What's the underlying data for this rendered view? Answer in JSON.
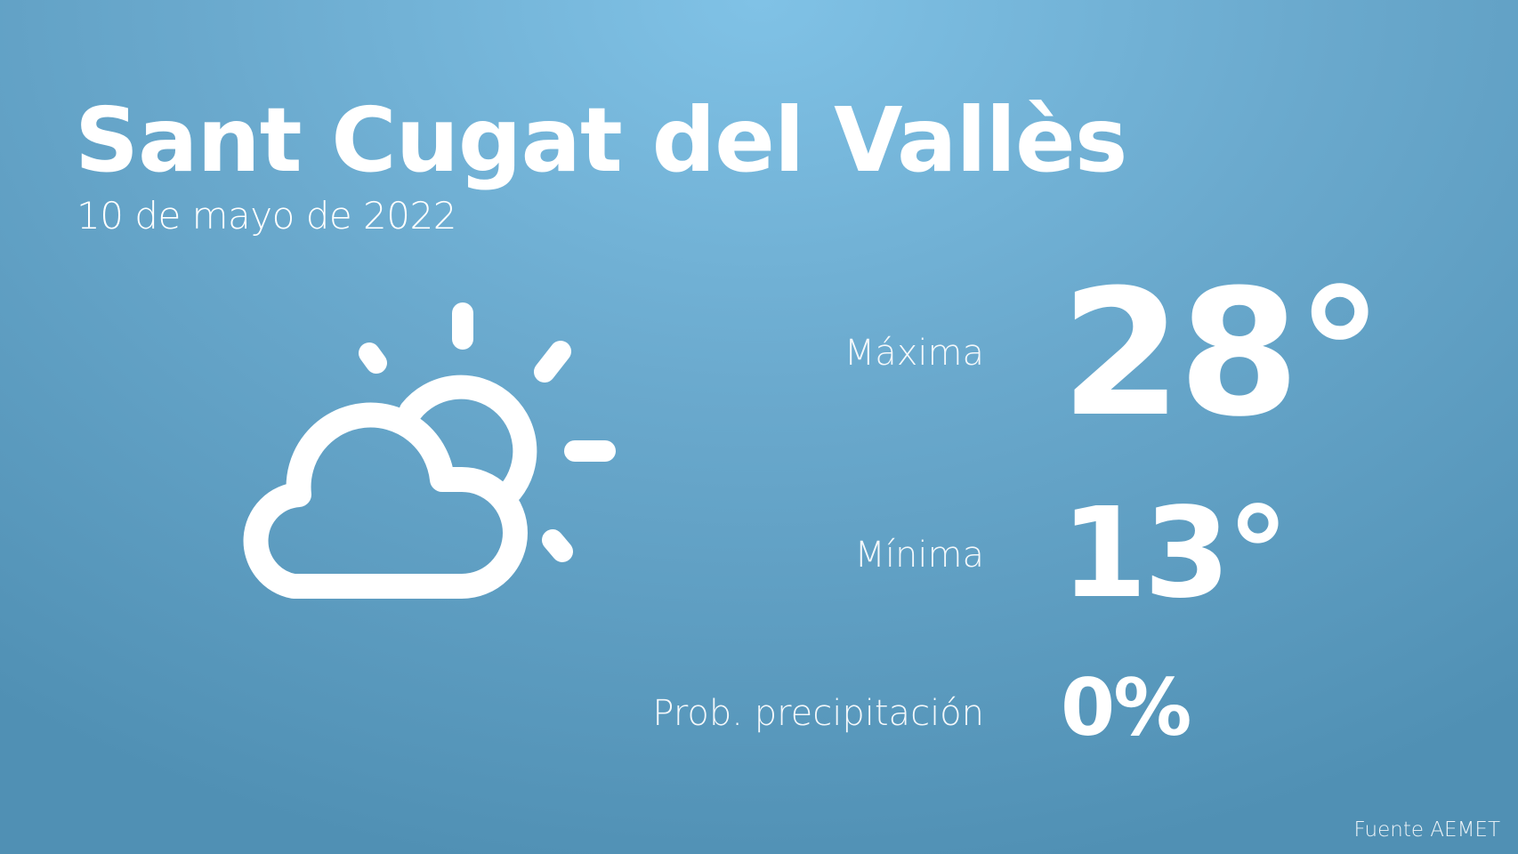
{
  "header": {
    "city": "Sant Cugat del Vallès",
    "date": "10 de mayo de 2022"
  },
  "weather": {
    "icon": "partly-cloudy-icon",
    "max_label": "Máxima",
    "max_value": "28°",
    "min_label": "Mínima",
    "min_value": "13°",
    "precip_label": "Prob. precipitación",
    "precip_value": "0%"
  },
  "footer": {
    "source": "Fuente AEMET"
  },
  "colors": {
    "background_top": "#80c2e6",
    "background_bottom": "#5090b4",
    "text": "#ffffff"
  }
}
